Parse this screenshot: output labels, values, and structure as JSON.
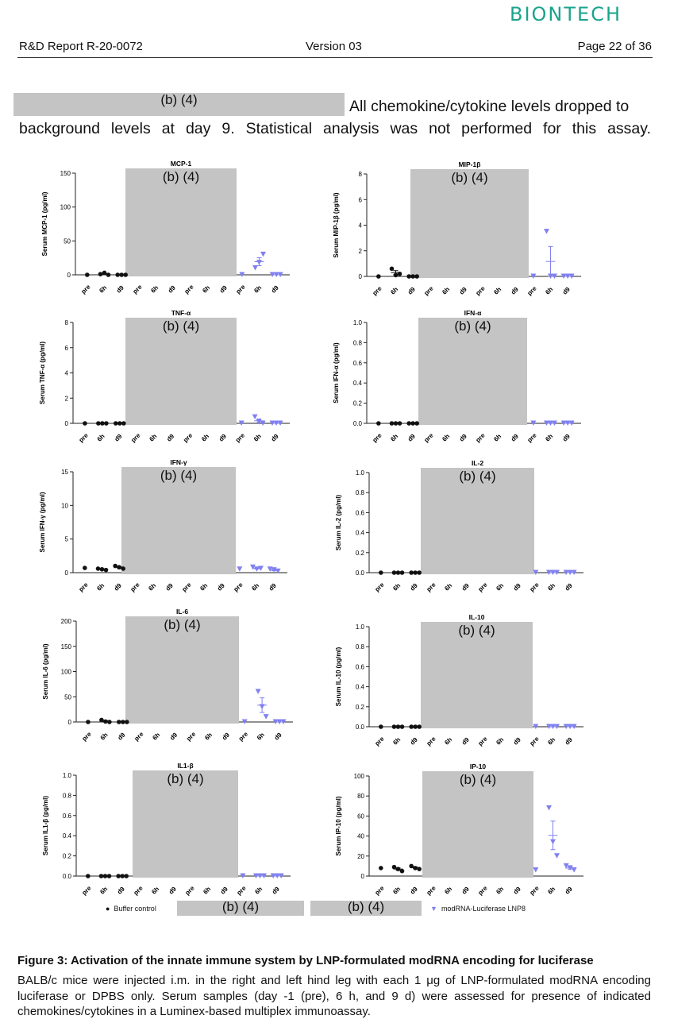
{
  "header": {
    "logo": "BIONTECH",
    "report_id": "R&D Report R-20-0072",
    "version": "Version 03",
    "page": "Page 22 of 36"
  },
  "intro": {
    "redaction_label": "(b) (4)",
    "line1": "All chemokine/cytokine levels dropped to",
    "line2": "background levels at day 9. Statistical analysis was not performed for this assay."
  },
  "legend": {
    "buffer_label": "Buffer control",
    "redaction_1": "(b) (4)",
    "redaction_2": "(b) (4)",
    "lnp_label": "modRNA-Luciferase LNP8"
  },
  "caption": {
    "title": "Figure 3: Activation of the innate immune system by LNP-formulated modRNA encoding for luciferase",
    "body": "BALB/c mice were injected i.m. in the right and left hind leg with each 1 μg of LNP-formulated modRNA encoding luciferase or DPBS only. Serum samples (day -1 (pre), 6 h, and 9 d) were assessed for presence of indicated chemokines/cytokines in a Luminex-based multiplex immunoassay."
  },
  "colors": {
    "buffer": "#111111",
    "lnp": "#8080f0",
    "redaction": "#c4c4c4"
  },
  "chart_data": [
    {
      "type": "scatter",
      "title": "MCP-1",
      "ylabel": "Serum MCP-1 (pg/ml)",
      "ylim": [
        0,
        150
      ],
      "yticks": [
        "0",
        "50",
        "100",
        "150"
      ],
      "xticks": [
        "pre",
        "6h",
        "d9",
        "pre",
        "6h",
        "d9",
        "pre",
        "6h",
        "d9",
        "pre",
        "6h",
        "d9"
      ],
      "redaction": "(b) (4)",
      "buffer": {
        "pre": [
          0
        ],
        "6h": [
          1,
          3,
          0
        ],
        "d9": [
          0,
          0,
          0
        ]
      },
      "lnp": {
        "pre": [
          0
        ],
        "6h": [
          10,
          18,
          30
        ],
        "d9": [
          0,
          0,
          0
        ]
      }
    },
    {
      "type": "scatter",
      "title": "MIP-1β",
      "ylabel": "Serum MIP-1β (pg/ml)",
      "ylim": [
        0,
        8
      ],
      "yticks": [
        "0",
        "2",
        "4",
        "6",
        "8"
      ],
      "xticks": [
        "pre",
        "6h",
        "d9",
        "pre",
        "6h",
        "d9",
        "pre",
        "6h",
        "d9",
        "pre",
        "6h",
        "d9"
      ],
      "redaction": "(b) (4)",
      "buffer": {
        "pre": [
          0
        ],
        "6h": [
          0.6,
          0.1,
          0.2
        ],
        "d9": [
          0,
          0,
          0
        ]
      },
      "lnp": {
        "pre": [
          0
        ],
        "6h": [
          3.5,
          0,
          0
        ],
        "d9": [
          0,
          0,
          0
        ]
      }
    },
    {
      "type": "scatter",
      "title": "TNF-α",
      "ylabel": "Serum TNF-α (pg/ml)",
      "ylim": [
        0,
        8
      ],
      "yticks": [
        "0",
        "2",
        "4",
        "6",
        "8"
      ],
      "xticks": [
        "pre",
        "6h",
        "d9",
        "pre",
        "6h",
        "d9",
        "pre",
        "6h",
        "d9",
        "pre",
        "6h",
        "d9"
      ],
      "redaction": "(b) (4)",
      "buffer": {
        "pre": [
          0
        ],
        "6h": [
          0,
          0,
          0
        ],
        "d9": [
          0,
          0,
          0
        ]
      },
      "lnp": {
        "pre": [
          0
        ],
        "6h": [
          0.5,
          0.1,
          0
        ],
        "d9": [
          0,
          0,
          0
        ]
      }
    },
    {
      "type": "scatter",
      "title": "IFN-α",
      "ylabel": "Serum IFN-α (pg/ml)",
      "ylim": [
        0,
        1.0
      ],
      "yticks": [
        "0.0",
        "0.2",
        "0.4",
        "0.6",
        "0.8",
        "1.0"
      ],
      "xticks": [
        "pre",
        "6h",
        "d9",
        "pre",
        "6h",
        "d9",
        "pre",
        "6h",
        "d9",
        "pre",
        "6h",
        "d9"
      ],
      "redaction": "(b) (4)",
      "buffer": {
        "pre": [
          0
        ],
        "6h": [
          0,
          0,
          0
        ],
        "d9": [
          0,
          0,
          0
        ]
      },
      "lnp": {
        "pre": [
          0
        ],
        "6h": [
          0,
          0,
          0
        ],
        "d9": [
          0,
          0,
          0
        ]
      }
    },
    {
      "type": "scatter",
      "title": "IFN-γ",
      "ylabel": "Serum IFN-γ (pg/ml)",
      "ylim": [
        0,
        15
      ],
      "yticks": [
        "0",
        "5",
        "10",
        "15"
      ],
      "xticks": [
        "pre",
        "6h",
        "d9",
        "pre",
        "6h",
        "d9",
        "pre",
        "6h",
        "d9",
        "pre",
        "6h",
        "d9"
      ],
      "redaction": "(b) (4)",
      "buffer": {
        "pre": [
          0.7
        ],
        "6h": [
          0.6,
          0.5,
          0.4
        ],
        "d9": [
          1.0,
          0.8,
          0.6
        ]
      },
      "lnp": {
        "pre": [
          0.5
        ],
        "6h": [
          0.8,
          0.5,
          0.6
        ],
        "d9": [
          0.5,
          0.4,
          0.2
        ]
      }
    },
    {
      "type": "scatter",
      "title": "IL-2",
      "ylabel": "Serum IL-2 (pg/ml)",
      "ylim": [
        0,
        1.0
      ],
      "yticks": [
        "0.0",
        "0.2",
        "0.4",
        "0.6",
        "0.8",
        "1.0"
      ],
      "xticks": [
        "pre",
        "6h",
        "d9",
        "pre",
        "6h",
        "d9",
        "pre",
        "6h",
        "d9",
        "pre",
        "6h",
        "d9"
      ],
      "redaction": "(b) (4)",
      "buffer": {
        "pre": [
          0
        ],
        "6h": [
          0,
          0,
          0
        ],
        "d9": [
          0,
          0,
          0
        ]
      },
      "lnp": {
        "pre": [
          0
        ],
        "6h": [
          0,
          0,
          0
        ],
        "d9": [
          0,
          0,
          0
        ]
      }
    },
    {
      "type": "scatter",
      "title": "IL-6",
      "ylabel": "Serum IL-6 (pg/ml)",
      "ylim": [
        0,
        200
      ],
      "yticks": [
        "0",
        "50",
        "100",
        "150",
        "200"
      ],
      "xticks": [
        "pre",
        "6h",
        "d9",
        "pre",
        "6h",
        "d9",
        "pre",
        "6h",
        "d9",
        "pre",
        "6h",
        "d9"
      ],
      "redaction": "(b) (4)",
      "buffer": {
        "pre": [
          0
        ],
        "6h": [
          4,
          1,
          0
        ],
        "d9": [
          0,
          0,
          0
        ]
      },
      "lnp": {
        "pre": [
          0
        ],
        "6h": [
          60,
          30,
          10
        ],
        "d9": [
          0,
          0,
          0
        ]
      }
    },
    {
      "type": "scatter",
      "title": "IL-10",
      "ylabel": "Serum IL-10 (pg/ml)",
      "ylim": [
        0,
        1.0
      ],
      "yticks": [
        "0.0",
        "0.2",
        "0.4",
        "0.6",
        "0.8",
        "1.0"
      ],
      "xticks": [
        "pre",
        "6h",
        "d9",
        "pre",
        "6h",
        "d9",
        "pre",
        "6h",
        "d9",
        "pre",
        "6h",
        "d9"
      ],
      "redaction": "(b) (4)",
      "buffer": {
        "pre": [
          0
        ],
        "6h": [
          0,
          0,
          0
        ],
        "d9": [
          0,
          0,
          0
        ]
      },
      "lnp": {
        "pre": [
          0
        ],
        "6h": [
          0,
          0,
          0
        ],
        "d9": [
          0,
          0,
          0
        ]
      }
    },
    {
      "type": "scatter",
      "title": "IL1-β",
      "ylabel": "Serum IL1-β (pg/ml)",
      "ylim": [
        0,
        1.0
      ],
      "yticks": [
        "0.0",
        "0.2",
        "0.4",
        "0.6",
        "0.8",
        "1.0"
      ],
      "xticks": [
        "pre",
        "6h",
        "d9",
        "pre",
        "6h",
        "d9",
        "pre",
        "6h",
        "d9",
        "pre",
        "6h",
        "d9"
      ],
      "redaction": "(b) (4)",
      "buffer": {
        "pre": [
          0
        ],
        "6h": [
          0,
          0,
          0
        ],
        "d9": [
          0,
          0,
          0
        ]
      },
      "lnp": {
        "pre": [
          0
        ],
        "6h": [
          0,
          0,
          0
        ],
        "d9": [
          0,
          0,
          0
        ]
      }
    },
    {
      "type": "scatter",
      "title": "IP-10",
      "ylabel": "Serum IP-10 (pg/ml)",
      "ylim": [
        0,
        100
      ],
      "yticks": [
        "0",
        "20",
        "40",
        "60",
        "80",
        "100"
      ],
      "xticks": [
        "pre",
        "6h",
        "d9",
        "pre",
        "6h",
        "d9",
        "pre",
        "6h",
        "d9",
        "pre",
        "6h",
        "d9"
      ],
      "redaction": "(b) (4)",
      "buffer": {
        "pre": [
          8
        ],
        "6h": [
          9,
          7,
          5
        ],
        "d9": [
          10,
          8,
          7
        ]
      },
      "lnp": {
        "pre": [
          6
        ],
        "6h": [
          68,
          34,
          20
        ],
        "d9": [
          10,
          8,
          6
        ]
      }
    }
  ]
}
